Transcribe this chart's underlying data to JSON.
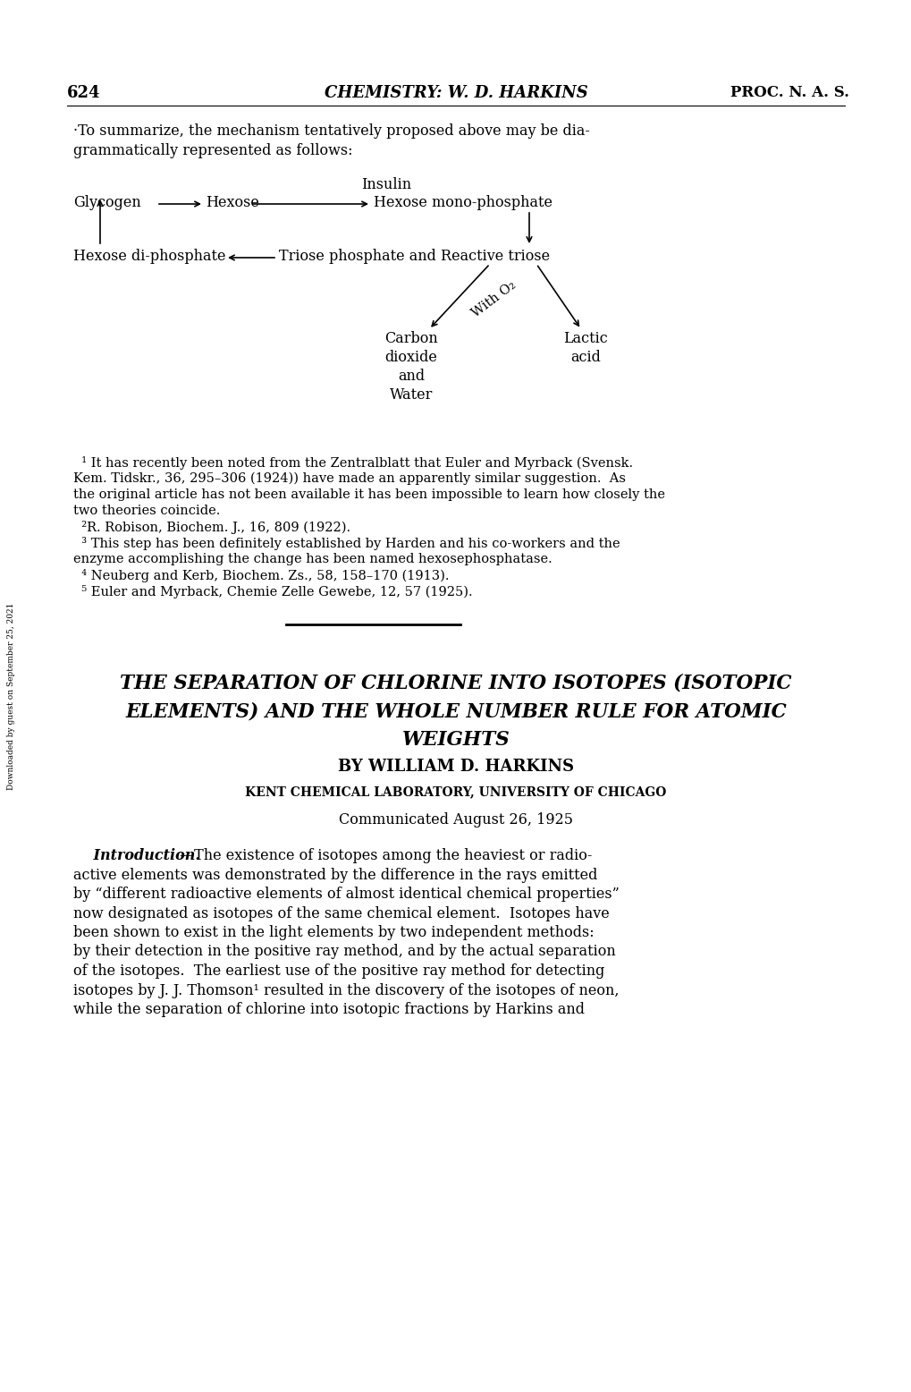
{
  "page_number": "624",
  "header_center": "CHEMISTRY: W. D. HARKINS",
  "header_right": "PROC. N. A. S.",
  "background_color": "#ffffff",
  "text_color": "#000000",
  "figsize": [
    10.2,
    15.56
  ],
  "dpi": 100,
  "intro_line1": "·To summarize, the mechanism tentatively proposed above may be dia-",
  "intro_line2": "grammatically represented as follows:",
  "diagram_insulin": "Insulin",
  "diagram_glycogen": "Glycogen",
  "diagram_hexose": "Hexose",
  "diagram_hexose_mono": "Hexose mono-phosphate",
  "diagram_hexose_di": "Hexose di-phosphate",
  "diagram_triose": "Triose phosphate and Reactive triose",
  "diagram_with_o2": "With O₂",
  "diagram_carbon": "Carbon\ndioxide\nand\nWater",
  "diagram_lactic": "Lactic\nacid",
  "footnote_texts": [
    "  ¹ It has recently been noted from the Zentralblatt that Euler and Myrback (Svensk.",
    "Kem. Tidskr., 36, 295–306 (1924)) have made an apparently similar suggestion.  As",
    "the original article has not been available it has been impossible to learn how closely the",
    "two theories coincide.",
    "  ²R. Robison, Biochem. J., 16, 809 (1922).",
    "  ³ This step has been definitely established by Harden and his co-workers and the",
    "enzyme accomplishing the change has been named hexosephosphatase.",
    "  ⁴ Neuberg and Kerb, Biochem. Zs., 58, 158–170 (1913).",
    "  ⁵ Euler and Myrback, Chemie Zelle Gewebe, 12, 57 (1925)."
  ],
  "article_title_line1": "THE SEPARATION OF CHLORINE INTO ISOTOPES (ISOTOPIC",
  "article_title_line2": "ELEMENTS) AND THE WHOLE NUMBER RULE FOR ATOMIC",
  "article_title_line3": "WEIGHTS",
  "by_line": "BY WILLIAM D. HARKINS",
  "institution": "KENT CHEMICAL LABORATORY, UNIVERSITY OF CHICAGO",
  "communicated": "Communicated August 26, 1925",
  "intro_para_lines": [
    "active elements was demonstrated by the difference in the rays emitted",
    "by “different radioactive elements of almost identical chemical properties”",
    "now designated as isotopes of the same chemical element.  Isotopes have",
    "been shown to exist in the light elements by two independent methods:",
    "by their detection in the positive ray method, and by the actual separation",
    "of the isotopes.  The earliest use of the positive ray method for detecting",
    "isotopes by J. J. Thomson¹ resulted in the discovery of the isotopes of neon,",
    "while the separation of chlorine into isotopic fractions by Harkins and"
  ],
  "sidebar_text": "Downloaded by guest on September 25, 2021"
}
